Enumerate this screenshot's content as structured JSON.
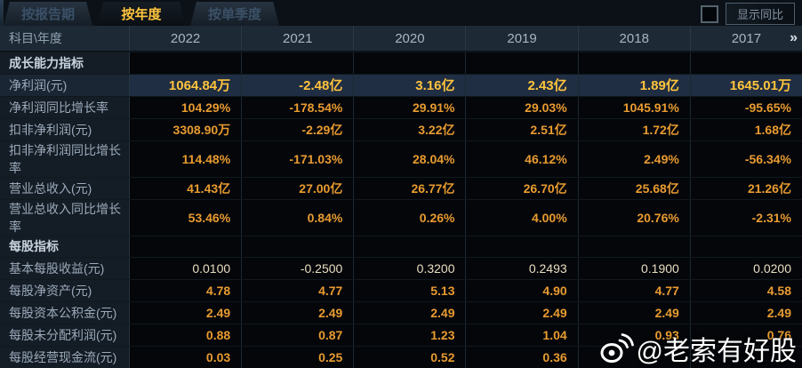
{
  "tabs": [
    {
      "label": "按报告期",
      "active": false
    },
    {
      "label": "按年度",
      "active": true
    },
    {
      "label": "按单季度",
      "active": false
    }
  ],
  "toolbar": {
    "show_yoy_label": "显示同比",
    "checkbox_checked": false
  },
  "table": {
    "corner_label": "科目\\年度",
    "years": [
      "2022",
      "2021",
      "2020",
      "2019",
      "2018",
      "2017"
    ],
    "more_icon": "»",
    "rows": [
      {
        "type": "section",
        "label": "成长能力指标",
        "values": [
          "",
          "",
          "",
          "",
          "",
          ""
        ]
      },
      {
        "type": "data",
        "label": "净利润(元)",
        "highlight": true,
        "values": [
          "1064.84万",
          "-2.48亿",
          "3.16亿",
          "2.43亿",
          "1.89亿",
          "1645.01万"
        ]
      },
      {
        "type": "data",
        "label": "净利润同比增长率",
        "values": [
          "104.29%",
          "-178.54%",
          "29.91%",
          "29.03%",
          "1045.91%",
          "-95.65%"
        ]
      },
      {
        "type": "data",
        "label": "扣非净利润(元)",
        "values": [
          "3308.90万",
          "-2.29亿",
          "3.22亿",
          "2.51亿",
          "1.72亿",
          "1.68亿"
        ]
      },
      {
        "type": "data",
        "label": "扣非净利润同比增长率",
        "values": [
          "114.48%",
          "-171.03%",
          "28.04%",
          "46.12%",
          "2.49%",
          "-56.34%"
        ]
      },
      {
        "type": "data",
        "label": "营业总收入(元)",
        "values": [
          "41.43亿",
          "27.00亿",
          "26.77亿",
          "26.70亿",
          "25.68亿",
          "21.26亿"
        ]
      },
      {
        "type": "data",
        "label": "营业总收入同比增长率",
        "values": [
          "53.46%",
          "0.84%",
          "0.26%",
          "4.00%",
          "20.76%",
          "-2.31%"
        ]
      },
      {
        "type": "section",
        "label": "每股指标",
        "values": [
          "",
          "",
          "",
          "",
          "",
          ""
        ]
      },
      {
        "type": "data",
        "label": "基本每股收益(元)",
        "pale": true,
        "values": [
          "0.0100",
          "-0.2500",
          "0.3200",
          "0.2493",
          "0.1900",
          "0.0200"
        ]
      },
      {
        "type": "data",
        "label": "每股净资产(元)",
        "values": [
          "4.78",
          "4.77",
          "5.13",
          "4.90",
          "4.77",
          "4.58"
        ]
      },
      {
        "type": "data",
        "label": "每股资本公积金(元)",
        "values": [
          "2.49",
          "2.49",
          "2.49",
          "2.49",
          "2.49",
          "2.49"
        ]
      },
      {
        "type": "data",
        "label": "每股未分配利润(元)",
        "values": [
          "0.88",
          "0.87",
          "1.23",
          "1.04",
          "0.93",
          "0.76"
        ]
      },
      {
        "type": "data",
        "label": "每股经营现金流(元)",
        "values": [
          "0.03",
          "0.25",
          "0.52",
          "0.36",
          "",
          ""
        ]
      }
    ]
  },
  "watermark": {
    "handle": "@老索有好股",
    "icon": "weibo-icon"
  },
  "colors": {
    "gold": "#e89b30",
    "gold_bright": "#ffc43c",
    "pale_value": "#e9dcc1",
    "highlight_row_bg": "#202e44",
    "header_bg": "#1d2935",
    "label_bg": "#141d26"
  }
}
